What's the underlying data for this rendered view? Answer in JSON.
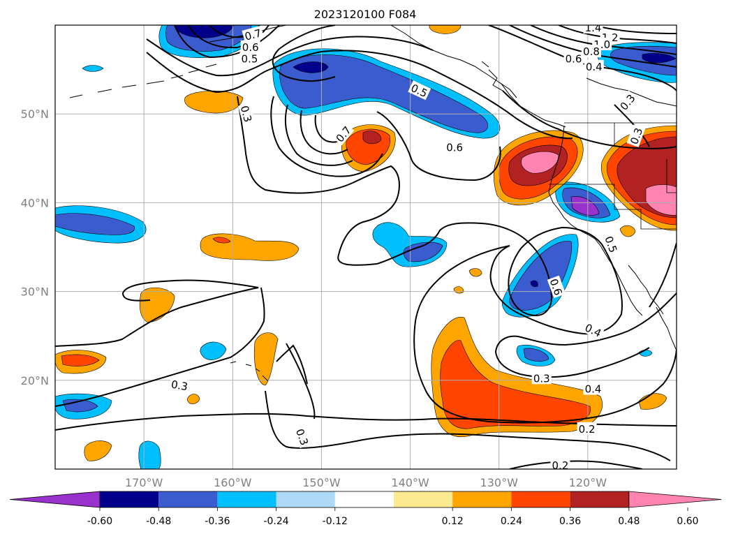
{
  "title": "2023120100 F084",
  "colors": {
    "grid": "#b0b0b0",
    "coast": "#000000",
    "contour": "#000000"
  },
  "map": {
    "lon_ticks": [
      {
        "value": -170,
        "label": "170°W"
      },
      {
        "value": -160,
        "label": "160°W"
      },
      {
        "value": -150,
        "label": "150°W"
      },
      {
        "value": -140,
        "label": "140°W"
      },
      {
        "value": -130,
        "label": "130°W"
      },
      {
        "value": -120,
        "label": "120°W"
      }
    ],
    "lat_ticks": [
      {
        "value": 20,
        "label": "20°N"
      },
      {
        "value": 30,
        "label": "30°N"
      },
      {
        "value": 40,
        "label": "40°N"
      },
      {
        "value": 50,
        "label": "50°N"
      }
    ],
    "lon_range": [
      -180,
      -110
    ],
    "lat_range": [
      10,
      60
    ]
  },
  "colorbar": {
    "ticks": [
      "-0.60",
      "-0.48",
      "-0.36",
      "-0.24",
      "-0.12",
      "0.12",
      "0.24",
      "0.36",
      "0.48",
      "0.60"
    ],
    "colors": [
      "#9932cc",
      "#00008b",
      "#3a5ccf",
      "#00bfff",
      "#add8f6",
      "#ffffff",
      "#fcea90",
      "#ffa500",
      "#ff4500",
      "#b22222",
      "#ff85b0"
    ]
  },
  "contour_labels": [
    {
      "text": "0.3",
      "lon": -158.5,
      "lat": 50.0,
      "rot": 75
    },
    {
      "text": "0.5",
      "lon": -158.1,
      "lat": 56.2,
      "rot": 0
    },
    {
      "text": "0.6",
      "lon": -158.0,
      "lat": 57.5,
      "rot": 0
    },
    {
      "text": "0.7",
      "lon": -157.7,
      "lat": 58.9,
      "rot": -15
    },
    {
      "text": "0.5",
      "lon": -139.0,
      "lat": 52.6,
      "rot": 25
    },
    {
      "text": "0.6",
      "lon": -135.0,
      "lat": 46.2,
      "rot": 0
    },
    {
      "text": "0.7",
      "lon": -147.5,
      "lat": 47.7,
      "rot": -50
    },
    {
      "text": "1.4",
      "lon": -119.4,
      "lat": 59.7,
      "rot": 0
    },
    {
      "text": "1.2",
      "lon": -117.5,
      "lat": 58.6,
      "rot": 0
    },
    {
      "text": "1.0",
      "lon": -118.4,
      "lat": 57.8,
      "rot": 0
    },
    {
      "text": "0.8",
      "lon": -119.6,
      "lat": 57.0,
      "rot": 0
    },
    {
      "text": "0.6",
      "lon": -121.6,
      "lat": 56.2,
      "rot": 0
    },
    {
      "text": "0.4",
      "lon": -119.3,
      "lat": 55.3,
      "rot": 0
    },
    {
      "text": "0.3",
      "lon": -115.5,
      "lat": 51.3,
      "rot": -50
    },
    {
      "text": "0.3",
      "lon": -114.5,
      "lat": 47.5,
      "rot": -70
    },
    {
      "text": "0.5",
      "lon": -117.4,
      "lat": 35.3,
      "rot": 70
    },
    {
      "text": "0.6",
      "lon": -123.6,
      "lat": 30.5,
      "rot": 70
    },
    {
      "text": "0.4",
      "lon": -119.4,
      "lat": 25.6,
      "rot": 25
    },
    {
      "text": "0.3",
      "lon": -125.2,
      "lat": 20.2,
      "rot": 0
    },
    {
      "text": "0.4",
      "lon": -119.4,
      "lat": 19.0,
      "rot": 0
    },
    {
      "text": "0.3",
      "lon": -166.0,
      "lat": 19.4,
      "rot": 10
    },
    {
      "text": "0.3",
      "lon": -152.2,
      "lat": 13.6,
      "rot": 70
    },
    {
      "text": "0.2",
      "lon": -120.1,
      "lat": 14.5,
      "rot": 0
    },
    {
      "text": "0.2",
      "lon": -123.1,
      "lat": 10.4,
      "rot": 0
    }
  ]
}
